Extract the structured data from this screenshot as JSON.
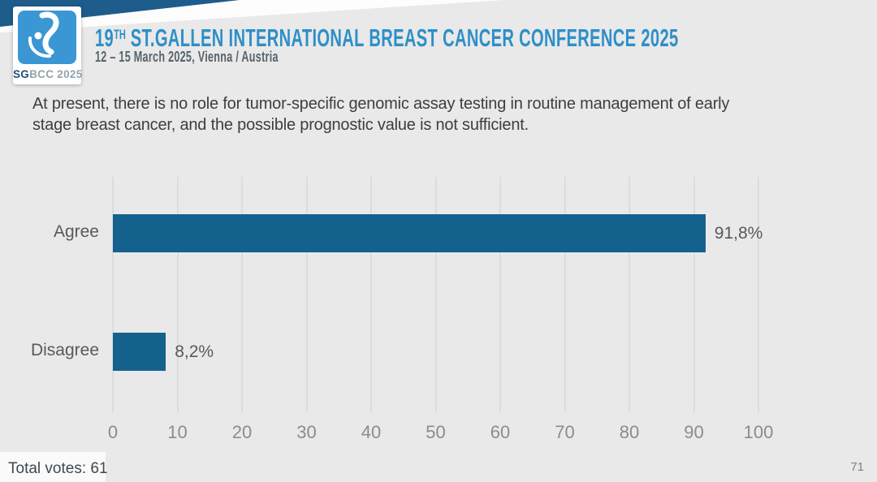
{
  "slide": {
    "logo": {
      "sg": "SG",
      "rest": "BCC 2025"
    },
    "header": {
      "title_prefix": "19",
      "title_sup": "TH",
      "title_rest": " ST.GALLEN INTERNATIONAL BREAST CANCER CONFERENCE 2025",
      "subtitle": "12 – 15 March 2025, Vienna / Austria"
    },
    "question_lines": {
      "line1": "At present, there is no role for tumor-specific genomic assay testing in routine management of early",
      "line2": "stage breast cancer, and the possible prognostic value is not sufficient."
    },
    "footer": {
      "total_votes": "Total votes: 61",
      "page_number": "71"
    }
  },
  "colors": {
    "background": "#E9E9E9",
    "accent_dark_blue": "#1D5C8B",
    "logo_blue": "#3A97D3",
    "title_blue": "#2E8FC8",
    "bar_blue": "#15618E",
    "grid_gray": "#DCDCDC"
  },
  "chart_data": {
    "type": "bar",
    "orientation": "horizontal",
    "title": "",
    "categories": [
      "Agree",
      "Disagree"
    ],
    "values": [
      91.8,
      8.2
    ],
    "value_labels": [
      "91,8%",
      "8,2%"
    ],
    "xlim": [
      0,
      100
    ],
    "x_ticks": [
      0,
      10,
      20,
      30,
      40,
      50,
      60,
      70,
      80,
      90,
      100
    ],
    "grid": true,
    "legend": false,
    "bar_color": "#15618E",
    "total_votes": 61
  }
}
